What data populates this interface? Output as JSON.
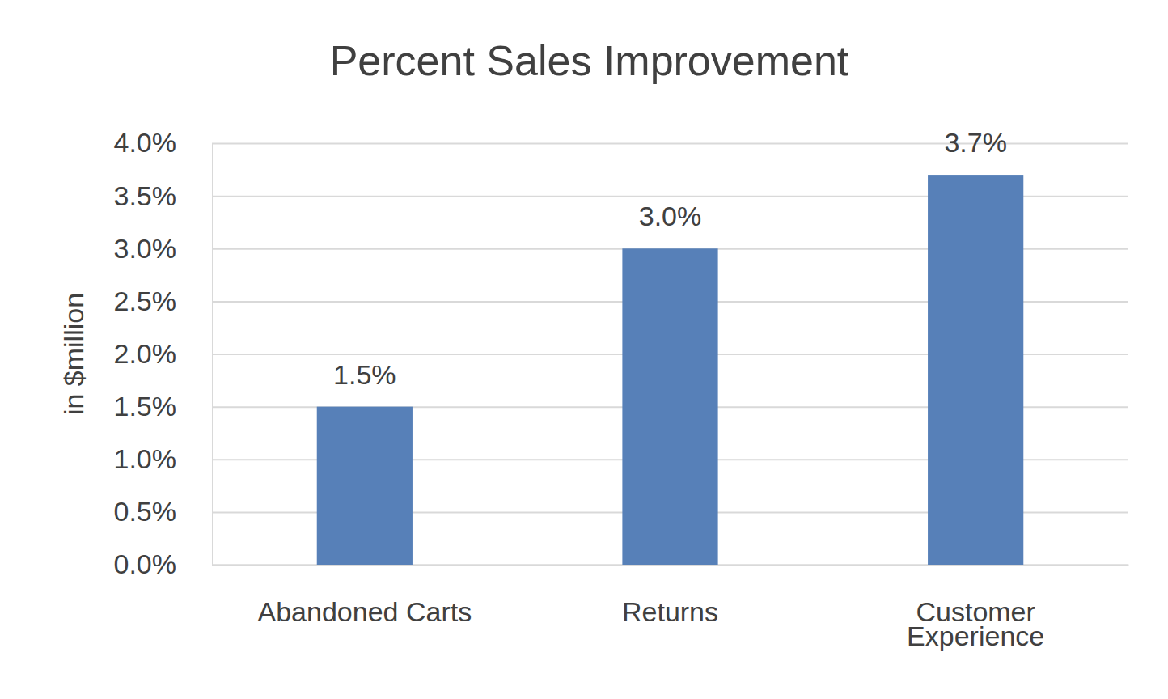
{
  "chart_data": {
    "type": "bar",
    "title": "Percent Sales Improvement",
    "ylabel": "in $million",
    "categories": [
      "Abandoned Carts",
      "Returns",
      "Customer Experience"
    ],
    "values": [
      1.5,
      3.0,
      3.7
    ],
    "value_labels": [
      "1.5%",
      "3.0%",
      "3.7%"
    ],
    "color": "#5780b8",
    "ylim": [
      0,
      4
    ],
    "yticks": [
      {
        "value": 0,
        "label": "0.0%"
      },
      {
        "value": 0.5,
        "label": "0.5%"
      },
      {
        "value": 1,
        "label": "1.0%"
      },
      {
        "value": 1.5,
        "label": "1.5%"
      },
      {
        "value": 2,
        "label": "2.0%"
      },
      {
        "value": 2.5,
        "label": "2.5%"
      },
      {
        "value": 3,
        "label": "3.0%"
      },
      {
        "value": 3.5,
        "label": "3.5%"
      },
      {
        "value": 4,
        "label": "4.0%"
      }
    ],
    "grid": true,
    "data_labels": true
  }
}
